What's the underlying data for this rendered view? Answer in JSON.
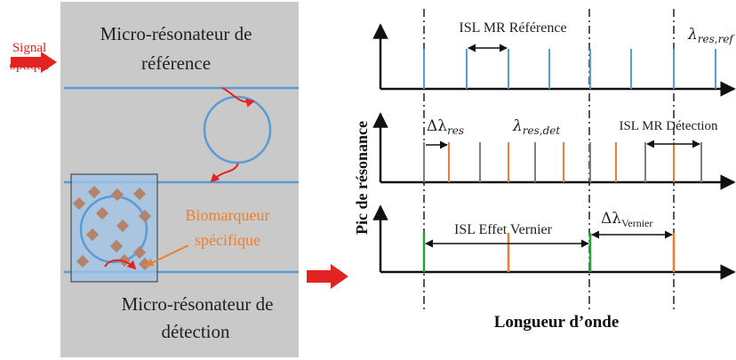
{
  "left_panel": {
    "input_label_line1": "Signal",
    "input_label_line2": "optique",
    "ref_resonator_line1": "Micro-résonateur de",
    "ref_resonator_line2": "référence",
    "det_resonator_line1": "Micro-résonateur de",
    "det_resonator_line2": "détection",
    "biomarker_line1": "Biomarqueur",
    "biomarker_line2": "spécifique"
  },
  "right_panel": {
    "y_axis_label": "Pic de résonance",
    "x_axis_label": "Longueur d’onde",
    "plot1_fsr_label": "ISL MR Référence",
    "plot1_lambda_main": "λ",
    "plot1_lambda_sub": "res,ref",
    "plot2_delta_main": "Δλ",
    "plot2_delta_sub": "res",
    "plot2_lambda_main": "λ",
    "plot2_lambda_sub": "res,det",
    "plot2_fsr_label": "ISL MR Détection",
    "plot3_fsr_label": "ISL Effet Vernier",
    "plot3_delta_main": "Δλ",
    "plot3_delta_sub": "Vernier"
  },
  "colors": {
    "gray_panel": "#c9c9c9",
    "waveguide": "#5b9bd5",
    "arrow_red": "#e32222",
    "biomarker_orange": "#ed7d31",
    "green_line": "#22a53a",
    "gray_line": "#7f7f7f",
    "box_fill": "#9dc3e6",
    "particle": "#b4846a"
  }
}
